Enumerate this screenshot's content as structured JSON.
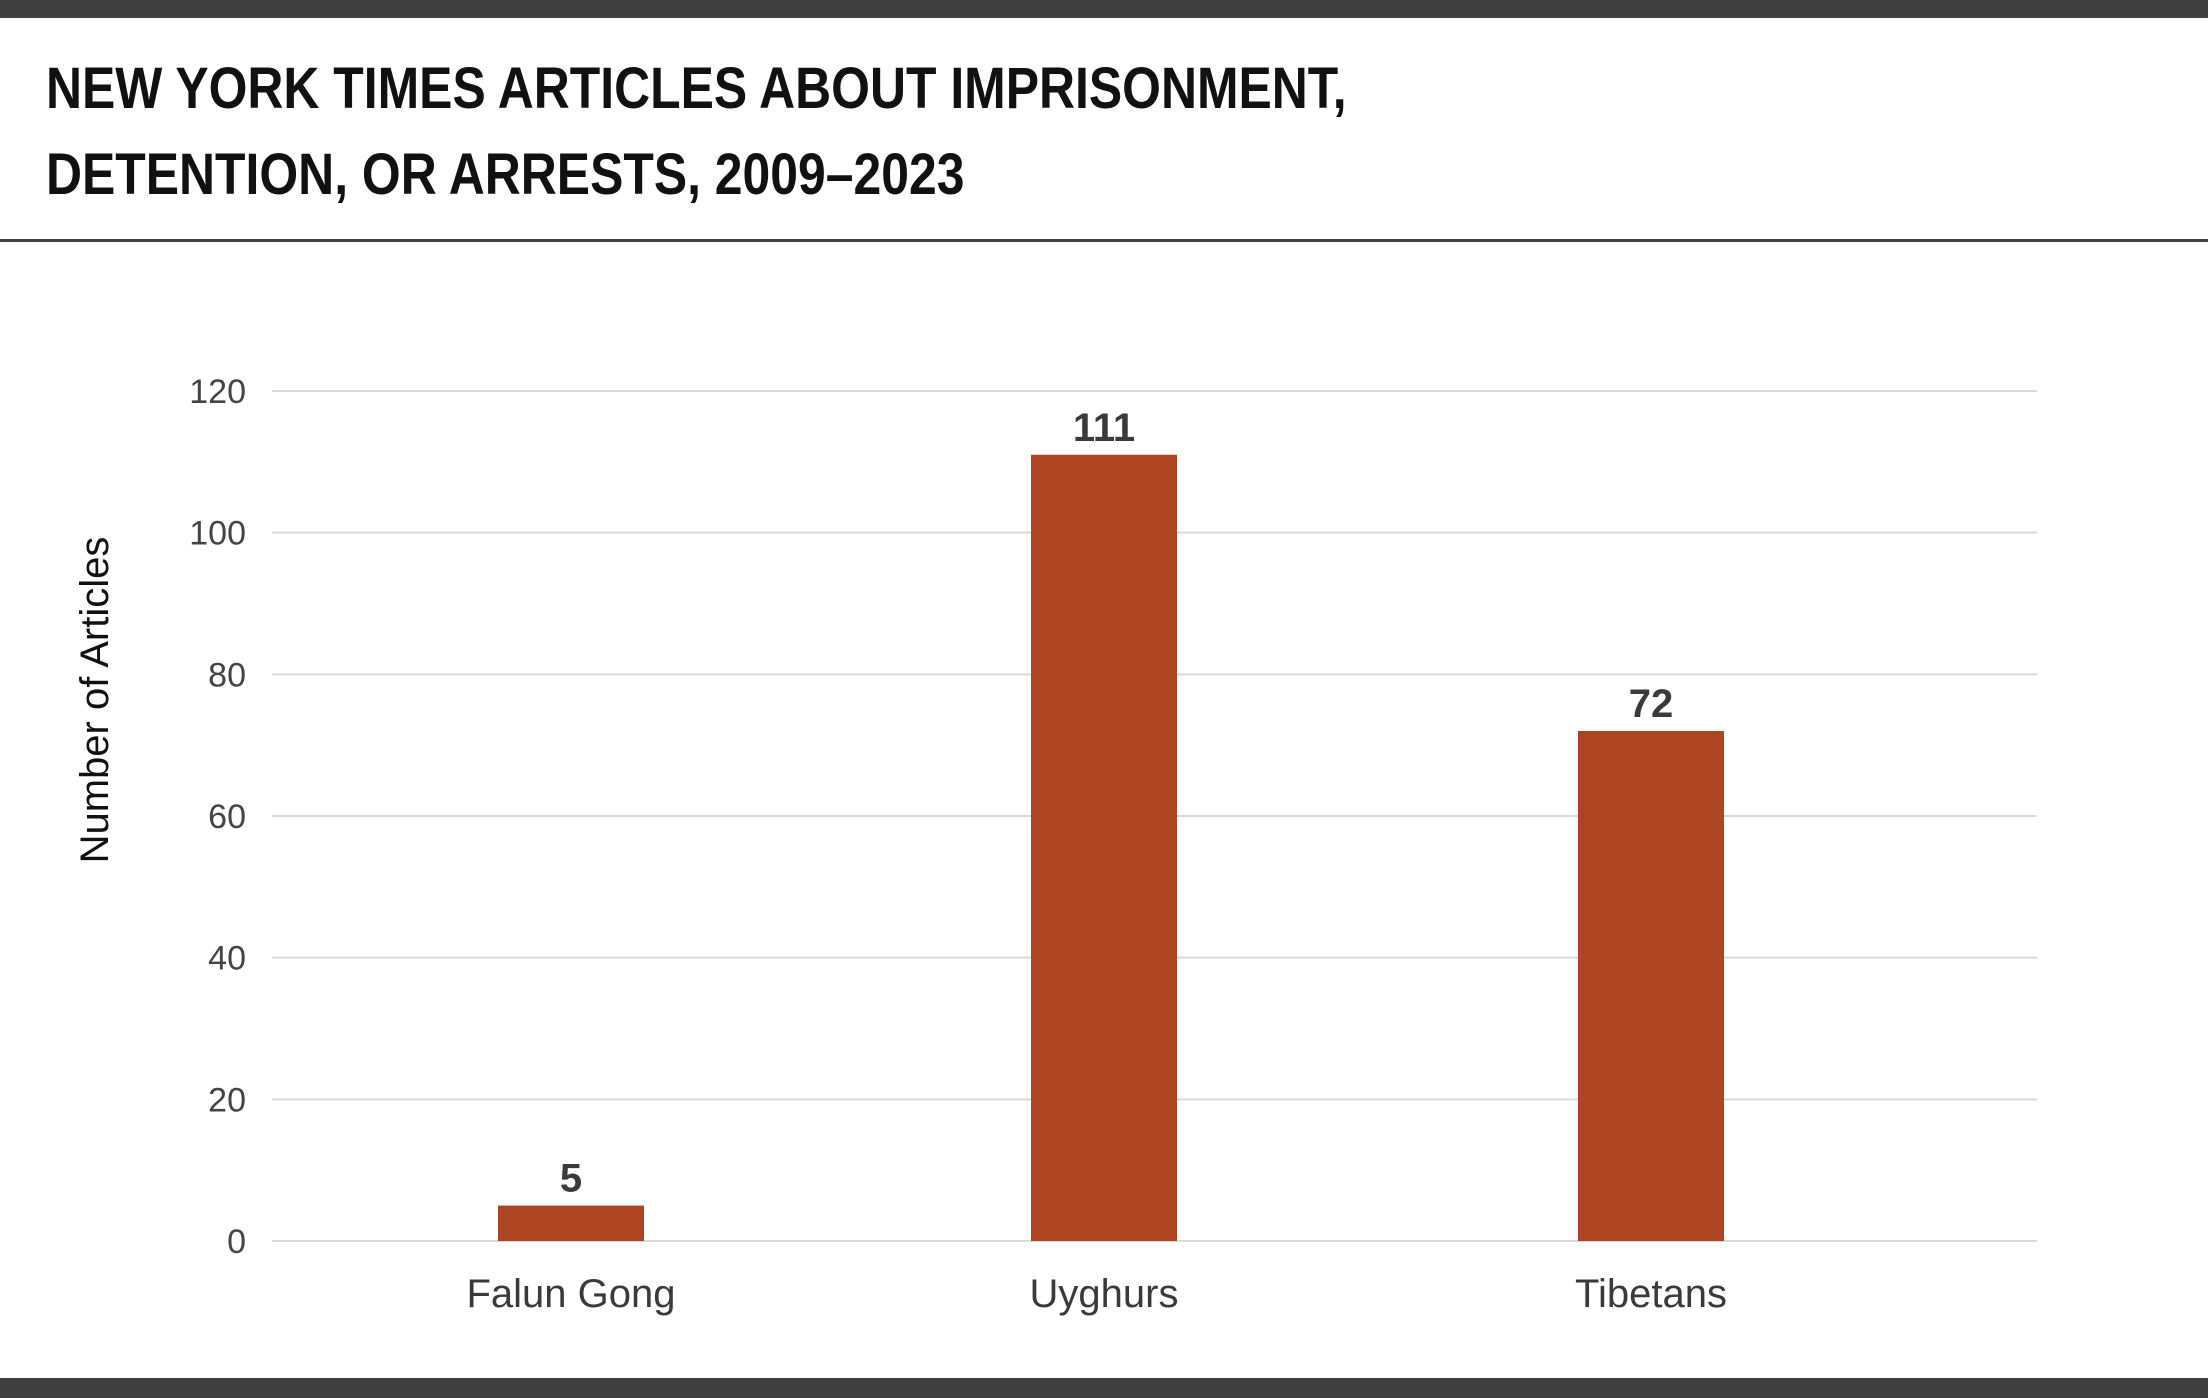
{
  "header": {
    "title_line1": "NEW YORK TIMES ARTICLES ABOUT IMPRISONMENT,",
    "title_line2": "DETENTION, OR ARRESTS, 2009–2023"
  },
  "colors": {
    "bar": "#ad4522",
    "frame": "#404040",
    "grid": "#d9d9d9"
  },
  "chart_data": {
    "type": "bar",
    "title": "NEW YORK TIMES ARTICLES ABOUT IMPRISONMENT, DETENTION, OR ARRESTS, 2009–2023",
    "categories": [
      "Falun Gong",
      "Uyghurs",
      "Tibetans"
    ],
    "values": [
      5,
      111,
      72
    ],
    "data_labels": [
      "5",
      "111",
      "72"
    ],
    "xlabel": "",
    "ylabel": "Number of Articles",
    "ylim": [
      0,
      120
    ],
    "yticks": [
      0,
      20,
      40,
      60,
      80,
      100,
      120
    ],
    "grid": true,
    "legend": "none"
  }
}
